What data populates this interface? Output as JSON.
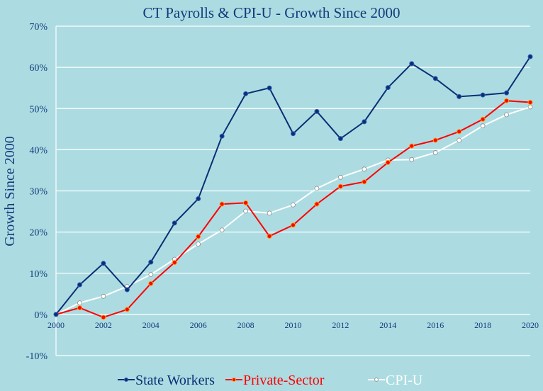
{
  "chart_data": {
    "type": "line",
    "title": "CT Payrolls & CPI-U - Growth Since 2000",
    "xlabel": "",
    "ylabel": "Growth Since 2000",
    "x": [
      2000,
      2001,
      2002,
      2003,
      2004,
      2005,
      2006,
      2007,
      2008,
      2009,
      2010,
      2011,
      2012,
      2013,
      2014,
      2015,
      2016,
      2017,
      2018,
      2019,
      2020
    ],
    "x_ticks": [
      "2000",
      "2002",
      "2004",
      "2006",
      "2008",
      "2010",
      "2012",
      "2014",
      "2016",
      "2018",
      "2020"
    ],
    "y_ticks": [
      "-10%",
      "0%",
      "10%",
      "20%",
      "30%",
      "40%",
      "50%",
      "60%",
      "70%"
    ],
    "ylim": [
      -10,
      70
    ],
    "grid": true,
    "legend_position": "bottom",
    "series": [
      {
        "name": "State Workers",
        "color": "#0b2f74",
        "marker": "filled",
        "values": [
          0,
          7.2,
          12.4,
          6.0,
          12.7,
          22.2,
          28.1,
          43.3,
          53.6,
          55.0,
          43.9,
          49.3,
          42.7,
          46.8,
          55.1,
          60.9,
          57.3,
          52.9,
          53.3,
          53.8,
          62.6
        ]
      },
      {
        "name": "Private-Sector",
        "color": "#ff0000",
        "marker": "filled-orange",
        "values": [
          0,
          1.6,
          -0.7,
          1.2,
          7.5,
          12.6,
          18.9,
          26.8,
          27.1,
          19.0,
          21.7,
          26.8,
          31.1,
          32.2,
          36.9,
          40.9,
          42.3,
          44.4,
          47.4,
          51.9,
          51.5
        ]
      },
      {
        "name": "CPI-U",
        "color": "#ffffff",
        "marker": "hollow",
        "values": [
          0,
          2.8,
          4.4,
          6.8,
          9.7,
          13.4,
          17.1,
          20.5,
          25.1,
          24.6,
          26.6,
          30.6,
          33.3,
          35.3,
          37.5,
          37.6,
          39.3,
          42.3,
          45.8,
          48.5,
          50.4
        ]
      }
    ]
  }
}
